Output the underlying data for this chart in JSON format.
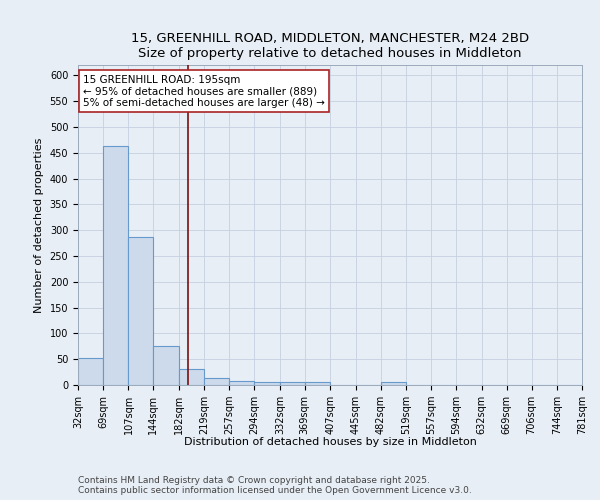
{
  "title_line1": "15, GREENHILL ROAD, MIDDLETON, MANCHESTER, M24 2BD",
  "title_line2": "Size of property relative to detached houses in Middleton",
  "xlabel": "Distribution of detached houses by size in Middleton",
  "ylabel": "Number of detached properties",
  "bin_edges": [
    32,
    69,
    107,
    144,
    182,
    219,
    257,
    294,
    332,
    369,
    407,
    445,
    482,
    519,
    557,
    594,
    632,
    669,
    706,
    744,
    781
  ],
  "bar_heights": [
    53,
    463,
    286,
    76,
    31,
    14,
    8,
    5,
    6,
    5,
    0,
    0,
    5,
    0,
    0,
    0,
    0,
    0,
    0,
    0
  ],
  "bar_color": "#cddaeb",
  "bar_edgecolor": "#6699cc",
  "bar_linewidth": 0.8,
  "grid_color": "#c5d0e0",
  "background_color": "#e8eef6",
  "vline_x": 195,
  "vline_color": "#7a1010",
  "vline_linewidth": 1.2,
  "annotation_text": "15 GREENHILL ROAD: 195sqm\n← 95% of detached houses are smaller (889)\n5% of semi-detached houses are larger (48) →",
  "annotation_box_color": "white",
  "annotation_border_color": "#aa2222",
  "ylim": [
    0,
    620
  ],
  "yticks": [
    0,
    50,
    100,
    150,
    200,
    250,
    300,
    350,
    400,
    450,
    500,
    550,
    600
  ],
  "footnote_line1": "Contains HM Land Registry data © Crown copyright and database right 2025.",
  "footnote_line2": "Contains public sector information licensed under the Open Government Licence v3.0.",
  "title_fontsize": 9.5,
  "axis_label_fontsize": 8,
  "tick_fontsize": 7,
  "annotation_fontsize": 7.5,
  "footnote_fontsize": 6.5,
  "ylabel_fontsize": 8
}
